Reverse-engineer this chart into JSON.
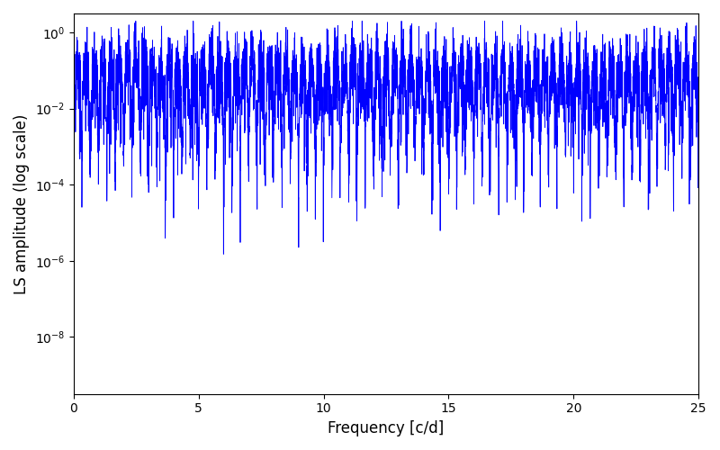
{
  "xlabel": "Frequency [c/d]",
  "ylabel": "LS amplitude (log scale)",
  "xlim": [
    0,
    25
  ],
  "ylim_log": [
    -9.5,
    0.5
  ],
  "line_color": "#0000ff",
  "line_width": 0.6,
  "freq_max": 25.0,
  "freq_min": 0.0,
  "n_freq": 5000,
  "background_color": "#ffffff"
}
